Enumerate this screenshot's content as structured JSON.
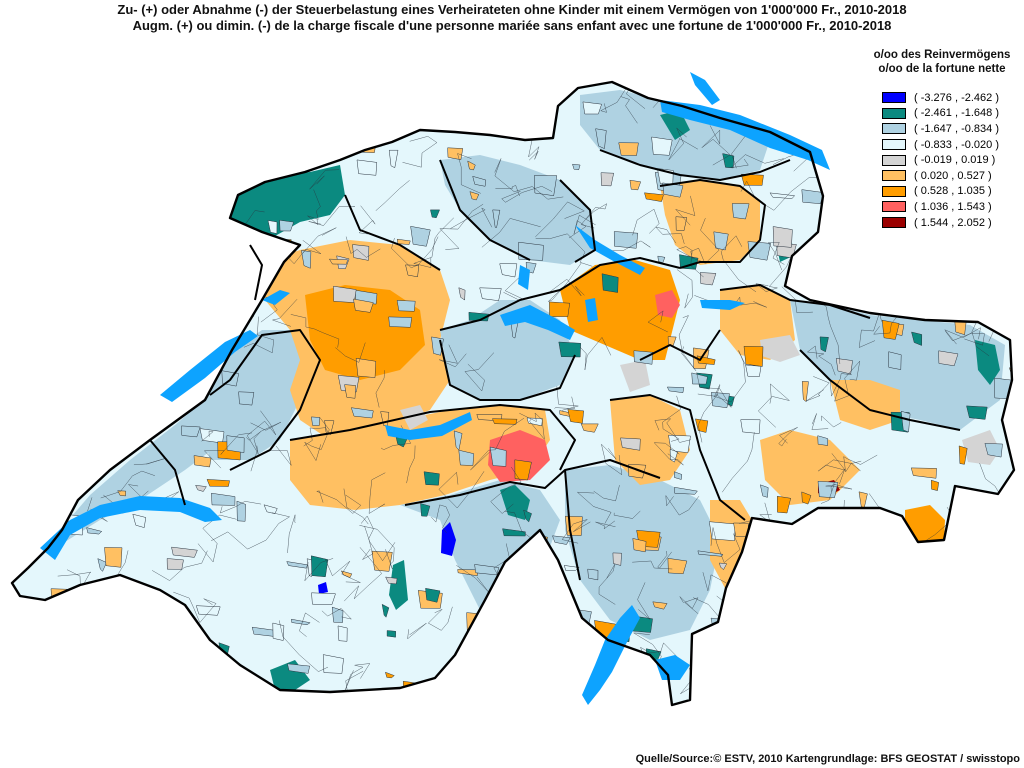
{
  "title_de": "Zu- (+) oder Abnahme (-) der Steuerbelastung  eines Verheirateten ohne Kinder mit einem Vermögen von 1'000'000 Fr., 2010-2018",
  "title_fr": "Augm. (+) ou dimin. (-) de la charge fiscale d'une personne mariée sans enfant avec une fortune de 1'000'000 Fr., 2010-2018",
  "legend": {
    "heading_de": "o/oo des Reinvermögens",
    "heading_fr": "o/oo de la fortune nette",
    "items": [
      {
        "label": "( -3.276 , -2.462 )",
        "color": "#0000ff"
      },
      {
        "label": "( -2.461 , -1.648 )",
        "color": "#0b8a80"
      },
      {
        "label": "( -1.647 , -0.834 )",
        "color": "#afd2e2"
      },
      {
        "label": "( -0.833 , -0.020 )",
        "color": "#e4f7fc"
      },
      {
        "label": "( -0.019 , 0.019 )",
        "color": "#d4d4d4"
      },
      {
        "label": "( 0.020 , 0.527 )",
        "color": "#ffc062"
      },
      {
        "label": "( 0.528 , 1.035 )",
        "color": "#ff9d00"
      },
      {
        "label": "( 1.036 , 1.543 )",
        "color": "#ff6160"
      },
      {
        "label": "( 1.544 , 2.052 )",
        "color": "#9b0000"
      }
    ]
  },
  "source": "Quelle/Source:© ESTV, 2010 Kartengrundlage: BFS GEOSTAT / swisstopo",
  "colors": {
    "lake": "#0da3ff",
    "border": "#000000",
    "commune_line": "#2b3540"
  }
}
